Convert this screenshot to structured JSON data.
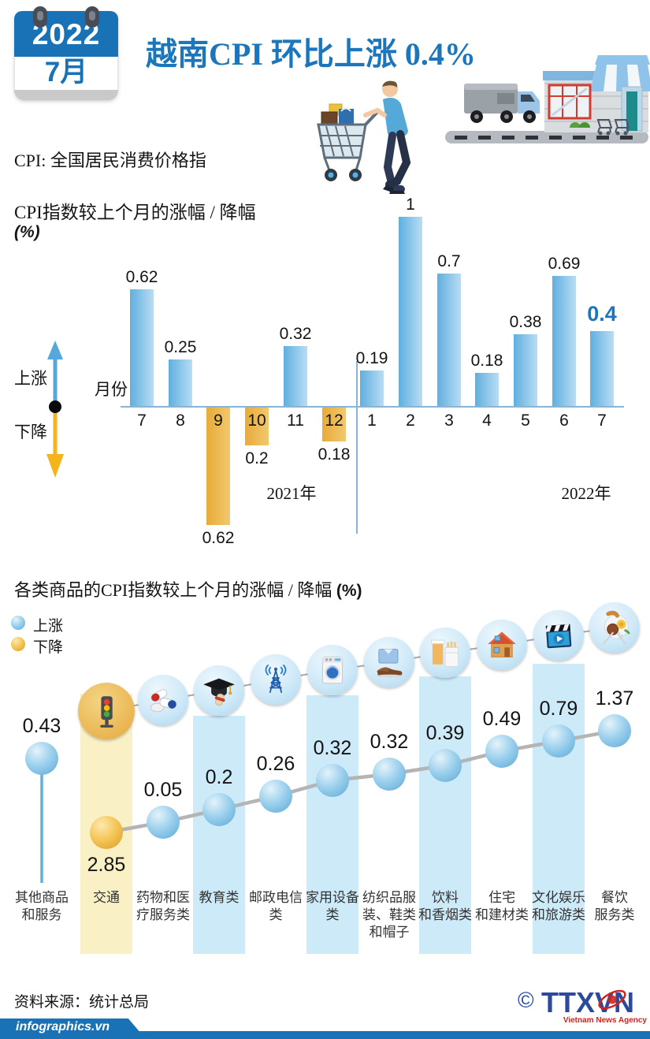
{
  "header": {
    "calendar_year": "2022",
    "calendar_month": "7月",
    "title": "越南CPI 环比上涨 0.4%"
  },
  "definition": "CPI: 全国居民消费价格指",
  "chart_data": [
    {
      "type": "bar",
      "title_line1": "CPI指数较上个月的涨幅 / 降幅",
      "title_line2": "(%)",
      "axis_label": "月份",
      "legend_up": "上涨",
      "legend_down": "下降",
      "categories": [
        "7",
        "8",
        "9",
        "10",
        "11",
        "12",
        "1",
        "2",
        "3",
        "4",
        "5",
        "6",
        "7"
      ],
      "values": [
        0.62,
        0.25,
        -0.62,
        -0.2,
        0.32,
        -0.18,
        0.19,
        1,
        0.7,
        0.18,
        0.38,
        0.69,
        0.4
      ],
      "labels": [
        "0.62",
        "0.25",
        "0.62",
        "0.2",
        "0.32",
        "0.18",
        "0.19",
        "1",
        "0.7",
        "0.18",
        "0.38",
        "0.69",
        "0.4"
      ],
      "year_left": "2021年",
      "year_right": "2022年",
      "colors": {
        "up": "#5fafdf",
        "down": "#e7ab39",
        "highlight": "#1b76bc",
        "axis": "#8ab4d6"
      }
    },
    {
      "type": "scatter",
      "title": "各类商品的CPI指数较上个月的涨幅 / 降幅 ",
      "title_unit": "(%)",
      "legend_up": "上涨",
      "legend_down": "下降",
      "points": [
        {
          "label_lines": [
            "其他商品",
            "和服务"
          ],
          "value": "0.43",
          "num": 0.43,
          "direction": "up",
          "icon": null,
          "band": null
        },
        {
          "label_lines": [
            "交通"
          ],
          "value": "2.85",
          "num": -2.85,
          "direction": "down",
          "icon": "traffic-light",
          "band": "yellow"
        },
        {
          "label_lines": [
            "药物和医",
            "疗服务类"
          ],
          "value": "0.05",
          "num": 0.05,
          "direction": "up",
          "icon": "medicine",
          "band": null
        },
        {
          "label_lines": [
            "教育类"
          ],
          "value": "0.2",
          "num": 0.2,
          "direction": "up",
          "icon": "education",
          "band": "blue"
        },
        {
          "label_lines": [
            "邮政电信",
            "类"
          ],
          "value": "0.26",
          "num": 0.26,
          "direction": "up",
          "icon": "telecom",
          "band": null
        },
        {
          "label_lines": [
            "家用设备",
            "类"
          ],
          "value": "0.32",
          "num": 0.32,
          "direction": "up",
          "icon": "appliance",
          "band": "blue"
        },
        {
          "label_lines": [
            "纺织品服",
            "装、鞋类",
            "和帽子"
          ],
          "value": "0.32",
          "num": 0.32,
          "direction": "up",
          "icon": "clothing",
          "band": null
        },
        {
          "label_lines": [
            "饮料",
            "和香烟类"
          ],
          "value": "0.39",
          "num": 0.39,
          "direction": "up",
          "icon": "beverage-tobacco",
          "band": "blue"
        },
        {
          "label_lines": [
            "住宅",
            "和建材类"
          ],
          "value": "0.49",
          "num": 0.49,
          "direction": "up",
          "icon": "housing",
          "band": null
        },
        {
          "label_lines": [
            "文化娱乐",
            "和旅游类"
          ],
          "value": "0.79",
          "num": 0.79,
          "direction": "up",
          "icon": "culture-tourism",
          "band": "blue"
        },
        {
          "label_lines": [
            "餐饮",
            "服务类"
          ],
          "value": "1.37",
          "num": 1.37,
          "direction": "up",
          "icon": "dining",
          "band": null
        }
      ],
      "colors": {
        "up": "#99cfec",
        "down": "#f4c353",
        "band_blue": "#cdeaf9",
        "band_yellow": "#faf0c5"
      }
    }
  ],
  "footer": {
    "source": "资料来源：统计总局",
    "site": "infographics.vn",
    "copyright": "©",
    "agency": "TTXVN",
    "agency_caption": "Vietnam News Agency"
  }
}
